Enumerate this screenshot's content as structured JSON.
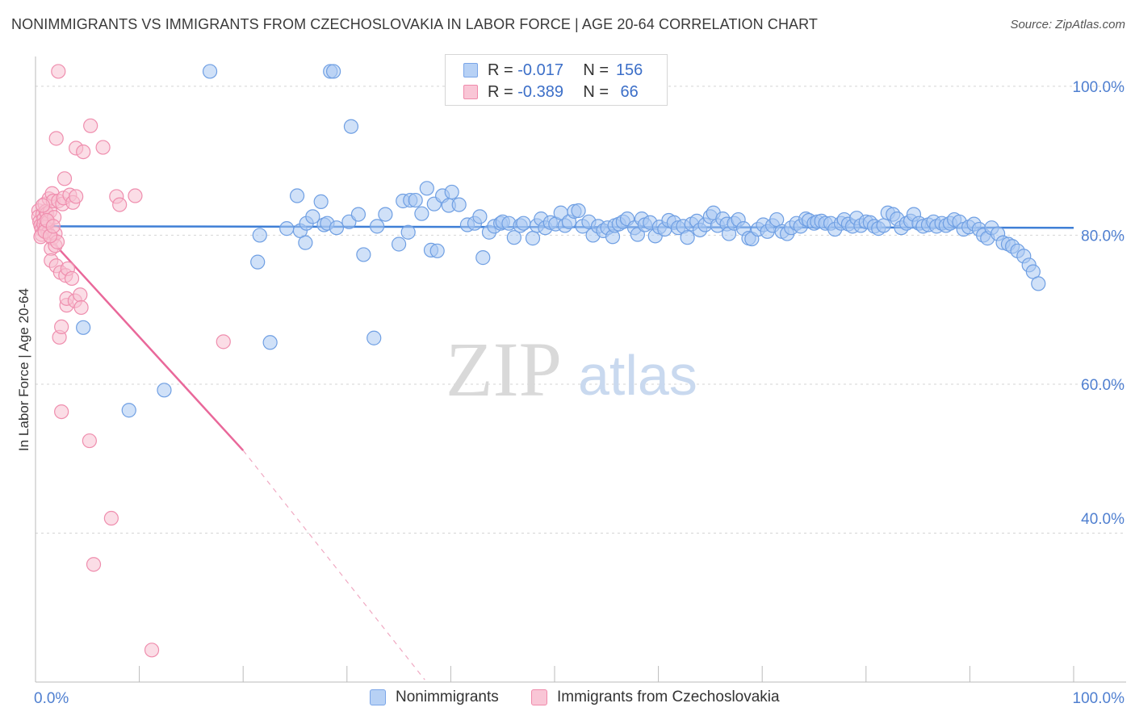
{
  "title": "NONIMMIGRANTS VS IMMIGRANTS FROM CZECHOSLOVAKIA IN LABOR FORCE | AGE 20-64 CORRELATION CHART",
  "source": "Source: ZipAtlas.com",
  "watermark": {
    "zip": "ZIP",
    "atlas": "atlas"
  },
  "legend": {
    "rows": [
      {
        "r_label": "R =",
        "r_value": "-0.017",
        "n_label": "N =",
        "n_value": "156",
        "color": "#b7d1f5",
        "border": "#7aa5e8"
      },
      {
        "r_label": "R =",
        "r_value": "-0.389",
        "n_label": "N =",
        "n_value": "66",
        "color": "#f9c6d6",
        "border": "#f08aab"
      }
    ]
  },
  "bottom_legend": [
    {
      "label": "Nonimmigrants",
      "color": "#b7d1f5",
      "border": "#7aa5e8"
    },
    {
      "label": "Immigrants from Czechoslovakia",
      "color": "#f9c6d6",
      "border": "#f08aab"
    }
  ],
  "chart_data": {
    "type": "scatter",
    "title": "NONIMMIGRANTS VS IMMIGRANTS FROM CZECHOSLOVAKIA IN LABOR FORCE | AGE 20-64 CORRELATION CHART",
    "xlabel": "",
    "ylabel": "In Labor Force | Age 20-64",
    "xlim": [
      0,
      100
    ],
    "ylim": [
      18,
      102
    ],
    "x_tick_labels": [
      {
        "value": 0,
        "label": "0.0%"
      },
      {
        "value": 100,
        "label": "100.0%"
      }
    ],
    "y_tick_labels": [
      {
        "value": 98,
        "label": "100.0%"
      },
      {
        "value": 78,
        "label": "80.0%"
      },
      {
        "value": 58,
        "label": "60.0%"
      },
      {
        "value": 40,
        "label": "40.0%"
      }
    ],
    "y_gridlines": [
      100,
      80,
      60,
      40
    ],
    "series": [
      {
        "name": "Nonimmigrants",
        "color": "#a9c8f2",
        "stroke": "#6f9fe3",
        "trend": {
          "x": [
            0,
            100
          ],
          "y": [
            79.2,
            79.0
          ],
          "color": "#3f7fd6"
        },
        "points": [
          [
            4.6,
            65.6
          ],
          [
            9.0,
            54.5
          ],
          [
            12.4,
            57.2
          ],
          [
            16.8,
            100
          ],
          [
            21.4,
            74.4
          ],
          [
            21.6,
            78.0
          ],
          [
            22.6,
            63.6
          ],
          [
            24.2,
            78.9
          ],
          [
            25.2,
            83.3
          ],
          [
            25.5,
            78.6
          ],
          [
            26.1,
            79.6
          ],
          [
            26.0,
            77.0
          ],
          [
            26.7,
            80.5
          ],
          [
            27.5,
            82.5
          ],
          [
            27.8,
            79.4
          ],
          [
            28.1,
            79.6
          ],
          [
            28.4,
            100
          ],
          [
            28.7,
            100
          ],
          [
            29.0,
            79.0
          ],
          [
            30.2,
            79.8
          ],
          [
            30.4,
            92.6
          ],
          [
            31.1,
            80.8
          ],
          [
            31.6,
            75.4
          ],
          [
            32.6,
            64.2
          ],
          [
            32.9,
            79.2
          ],
          [
            33.7,
            80.8
          ],
          [
            35.0,
            76.8
          ],
          [
            35.4,
            82.6
          ],
          [
            35.9,
            78.4
          ],
          [
            36.1,
            82.7
          ],
          [
            36.6,
            82.7
          ],
          [
            37.2,
            80.9
          ],
          [
            37.7,
            84.3
          ],
          [
            38.1,
            76.0
          ],
          [
            38.4,
            82.2
          ],
          [
            38.7,
            75.9
          ],
          [
            39.2,
            83.3
          ],
          [
            39.8,
            82.0
          ],
          [
            40.1,
            83.8
          ],
          [
            40.8,
            82.1
          ],
          [
            41.6,
            79.4
          ],
          [
            42.3,
            79.6
          ],
          [
            42.8,
            80.5
          ],
          [
            43.1,
            75.0
          ],
          [
            43.7,
            78.4
          ],
          [
            44.2,
            79.2
          ],
          [
            44.8,
            79.6
          ],
          [
            45.0,
            79.8
          ],
          [
            45.6,
            79.6
          ],
          [
            46.1,
            77.7
          ],
          [
            46.7,
            79.3
          ],
          [
            47.0,
            79.6
          ],
          [
            47.9,
            77.6
          ],
          [
            48.3,
            79.3
          ],
          [
            48.7,
            80.2
          ],
          [
            49.1,
            79.0
          ],
          [
            49.6,
            79.7
          ],
          [
            50.1,
            79.5
          ],
          [
            50.6,
            81.0
          ],
          [
            51.0,
            79.3
          ],
          [
            51.4,
            79.8
          ],
          [
            51.9,
            81.2
          ],
          [
            52.3,
            81.3
          ],
          [
            52.7,
            79.2
          ],
          [
            53.3,
            79.8
          ],
          [
            53.7,
            78.0
          ],
          [
            54.2,
            79.2
          ],
          [
            54.7,
            78.6
          ],
          [
            55.1,
            79.0
          ],
          [
            55.6,
            77.8
          ],
          [
            55.8,
            79.3
          ],
          [
            56.2,
            79.5
          ],
          [
            56.6,
            79.8
          ],
          [
            57.0,
            80.2
          ],
          [
            57.7,
            79.0
          ],
          [
            58.0,
            78.1
          ],
          [
            58.4,
            80.2
          ],
          [
            58.7,
            79.4
          ],
          [
            59.2,
            79.7
          ],
          [
            59.7,
            77.9
          ],
          [
            60.1,
            79.1
          ],
          [
            60.6,
            78.8
          ],
          [
            61.0,
            80.0
          ],
          [
            61.5,
            79.7
          ],
          [
            61.9,
            79.0
          ],
          [
            62.4,
            79.2
          ],
          [
            62.8,
            77.7
          ],
          [
            63.2,
            79.5
          ],
          [
            63.7,
            79.9
          ],
          [
            64.0,
            78.7
          ],
          [
            64.5,
            79.4
          ],
          [
            65.0,
            80.5
          ],
          [
            65.3,
            81.0
          ],
          [
            65.7,
            79.3
          ],
          [
            66.2,
            80.2
          ],
          [
            66.6,
            79.5
          ],
          [
            66.8,
            78.2
          ],
          [
            67.3,
            79.6
          ],
          [
            67.7,
            80.1
          ],
          [
            68.2,
            78.9
          ],
          [
            68.7,
            77.6
          ],
          [
            69.0,
            77.5
          ],
          [
            69.6,
            78.8
          ],
          [
            70.1,
            79.4
          ],
          [
            70.5,
            78.5
          ],
          [
            71.0,
            79.3
          ],
          [
            71.4,
            80.1
          ],
          [
            71.9,
            78.5
          ],
          [
            72.4,
            78.2
          ],
          [
            72.8,
            79.0
          ],
          [
            73.3,
            79.6
          ],
          [
            73.7,
            79.2
          ],
          [
            74.2,
            80.2
          ],
          [
            74.5,
            80.0
          ],
          [
            75.0,
            79.6
          ],
          [
            75.3,
            79.8
          ],
          [
            75.7,
            79.9
          ],
          [
            76.1,
            79.6
          ],
          [
            76.6,
            79.6
          ],
          [
            77.0,
            78.8
          ],
          [
            77.6,
            79.6
          ],
          [
            77.9,
            80.1
          ],
          [
            78.3,
            79.5
          ],
          [
            78.7,
            79.2
          ],
          [
            79.1,
            80.3
          ],
          [
            79.5,
            79.3
          ],
          [
            80.0,
            79.8
          ],
          [
            80.4,
            79.7
          ],
          [
            80.8,
            79.2
          ],
          [
            81.2,
            78.9
          ],
          [
            81.7,
            79.3
          ],
          [
            82.1,
            81.0
          ],
          [
            82.6,
            80.8
          ],
          [
            83.0,
            80.2
          ],
          [
            83.4,
            79.0
          ],
          [
            83.9,
            79.6
          ],
          [
            84.3,
            79.9
          ],
          [
            84.6,
            80.8
          ],
          [
            85.1,
            79.6
          ],
          [
            85.5,
            79.2
          ],
          [
            86.0,
            79.4
          ],
          [
            86.5,
            79.8
          ],
          [
            86.8,
            79.2
          ],
          [
            87.3,
            79.6
          ],
          [
            87.7,
            79.3
          ],
          [
            88.1,
            79.6
          ],
          [
            88.5,
            80.1
          ],
          [
            89.0,
            79.8
          ],
          [
            89.4,
            78.8
          ],
          [
            89.9,
            79.1
          ],
          [
            90.4,
            79.5
          ],
          [
            90.9,
            78.8
          ],
          [
            91.3,
            78.0
          ],
          [
            91.7,
            77.6
          ],
          [
            92.1,
            79.0
          ],
          [
            92.7,
            78.2
          ],
          [
            93.2,
            77.0
          ],
          [
            93.7,
            76.8
          ],
          [
            94.1,
            76.5
          ],
          [
            94.6,
            75.9
          ],
          [
            95.2,
            75.2
          ],
          [
            95.7,
            74.0
          ],
          [
            96.1,
            73.1
          ],
          [
            96.6,
            71.5
          ]
        ]
      },
      {
        "name": "Immigrants from Czechoslovakia",
        "color": "#f8c1d2",
        "stroke": "#ef8eae",
        "trend": {
          "x": [
            0,
            20.0,
            37.5
          ],
          "y": [
            79.6,
            49.1,
            18.3
          ],
          "color": "#e9689a",
          "solid_until_x": 20.0
        },
        "points": [
          [
            0.3,
            81.3
          ],
          [
            0.3,
            80.5
          ],
          [
            0.4,
            79.8
          ],
          [
            0.5,
            79.3
          ],
          [
            0.6,
            78.8
          ],
          [
            0.6,
            78.1
          ],
          [
            0.7,
            80.8
          ],
          [
            0.8,
            80.2
          ],
          [
            0.8,
            79.5
          ],
          [
            0.9,
            82.2
          ],
          [
            1.0,
            81.2
          ],
          [
            1.0,
            79.1
          ],
          [
            1.1,
            80.9
          ],
          [
            1.2,
            78.3
          ],
          [
            1.2,
            79.8
          ],
          [
            1.3,
            82.9
          ],
          [
            1.4,
            81.2
          ],
          [
            1.5,
            76.2
          ],
          [
            1.5,
            74.6
          ],
          [
            1.6,
            77.6
          ],
          [
            1.6,
            83.6
          ],
          [
            1.7,
            82.6
          ],
          [
            1.8,
            80.4
          ],
          [
            1.9,
            78.2
          ],
          [
            1.9,
            76.6
          ],
          [
            2.0,
            73.9
          ],
          [
            2.0,
            91.0
          ],
          [
            2.1,
            77.1
          ],
          [
            2.2,
            82.6
          ],
          [
            2.2,
            100
          ],
          [
            2.3,
            64.3
          ],
          [
            2.4,
            73.0
          ],
          [
            2.5,
            65.7
          ],
          [
            2.5,
            54.3
          ],
          [
            2.6,
            82.2
          ],
          [
            2.7,
            83.0
          ],
          [
            2.8,
            85.6
          ],
          [
            2.9,
            72.6
          ],
          [
            3.0,
            68.6
          ],
          [
            3.0,
            69.5
          ],
          [
            3.1,
            73.5
          ],
          [
            3.3,
            83.4
          ],
          [
            3.5,
            72.2
          ],
          [
            3.6,
            82.4
          ],
          [
            3.8,
            69.2
          ],
          [
            3.9,
            83.2
          ],
          [
            3.9,
            89.7
          ],
          [
            4.3,
            70.0
          ],
          [
            4.4,
            68.3
          ],
          [
            4.6,
            89.2
          ],
          [
            5.3,
            92.7
          ],
          [
            5.2,
            50.4
          ],
          [
            5.6,
            33.8
          ],
          [
            6.5,
            89.8
          ],
          [
            7.3,
            40.0
          ],
          [
            7.8,
            83.2
          ],
          [
            8.1,
            82.1
          ],
          [
            9.6,
            83.3
          ],
          [
            11.2,
            22.3
          ],
          [
            18.1,
            63.7
          ],
          [
            0.5,
            77.8
          ],
          [
            0.9,
            78.5
          ],
          [
            1.4,
            77.9
          ],
          [
            0.7,
            82.0
          ],
          [
            1.1,
            80.0
          ],
          [
            1.7,
            79.2
          ]
        ]
      }
    ]
  }
}
